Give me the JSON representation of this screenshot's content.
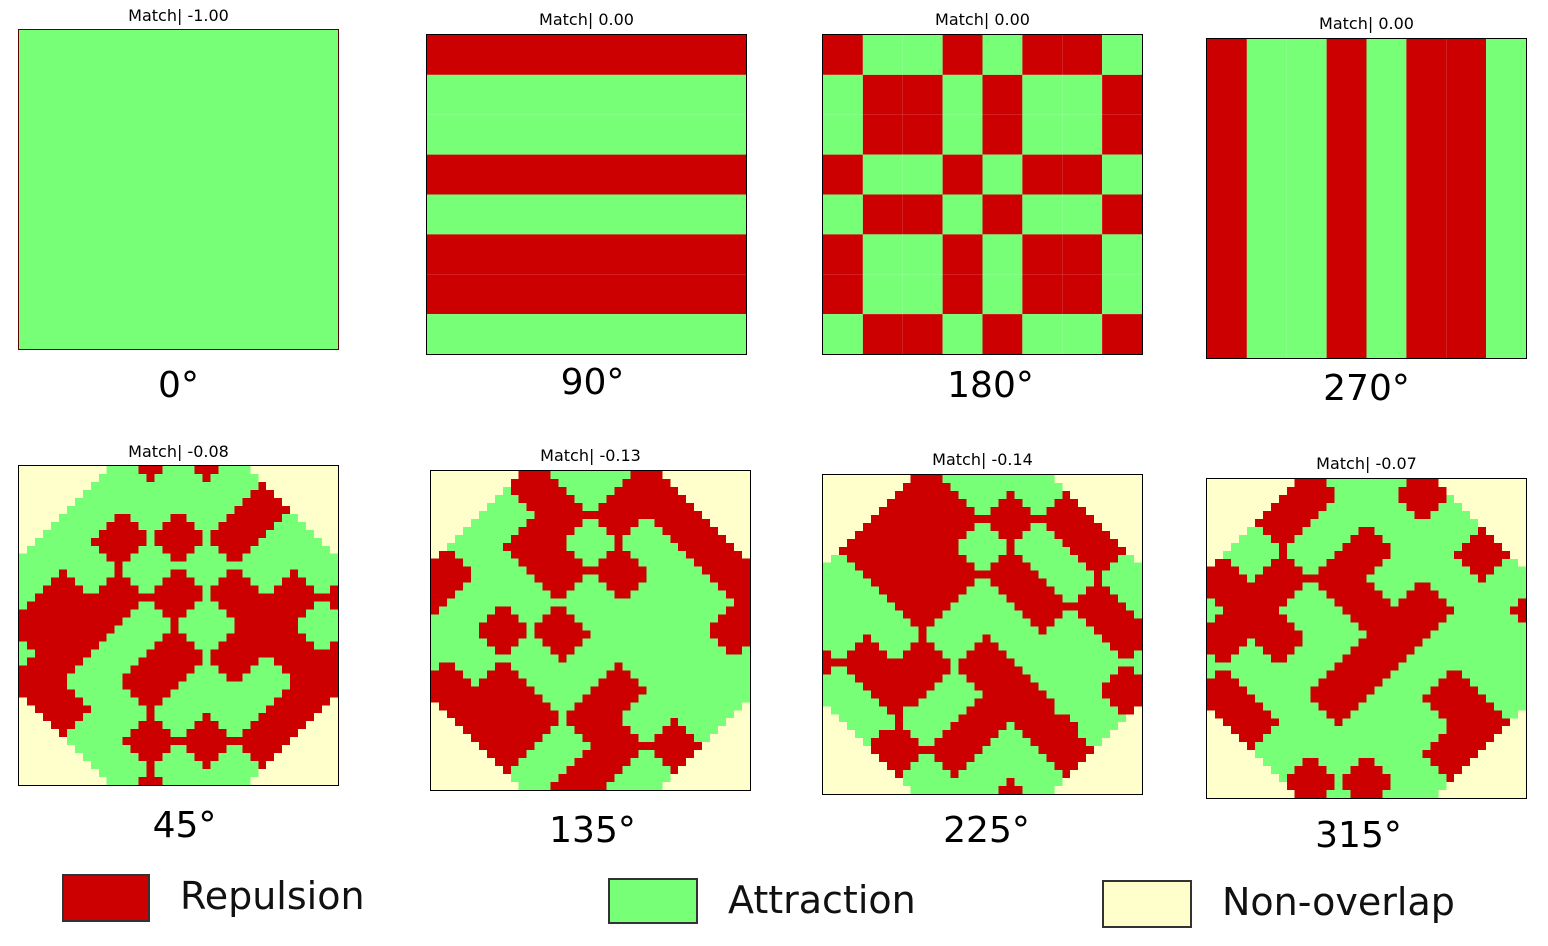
{
  "colors": {
    "repulsion": "#CC0000",
    "attraction": "#77FF77",
    "non_overlap": "#FFFFCC"
  },
  "panels": [
    {
      "title": "Match| -1.00",
      "angle": "0°"
    },
    {
      "title": "Match| 0.00",
      "angle": "90°"
    },
    {
      "title": "Match| 0.00",
      "angle": "180°"
    },
    {
      "title": "Match| 0.00",
      "angle": "270°"
    },
    {
      "title": "Match| -0.08",
      "angle": "45°"
    },
    {
      "title": "Match| -0.13",
      "angle": "135°"
    },
    {
      "title": "Match| -0.14",
      "angle": "225°"
    },
    {
      "title": "Match| -0.07",
      "angle": "315°"
    }
  ],
  "legend": [
    {
      "label": "Repulsion",
      "color": "#CC0000"
    },
    {
      "label": "Attraction",
      "color": "#77FF77"
    },
    {
      "label": "Non-overlap",
      "color": "#FFFFCC"
    }
  ]
}
